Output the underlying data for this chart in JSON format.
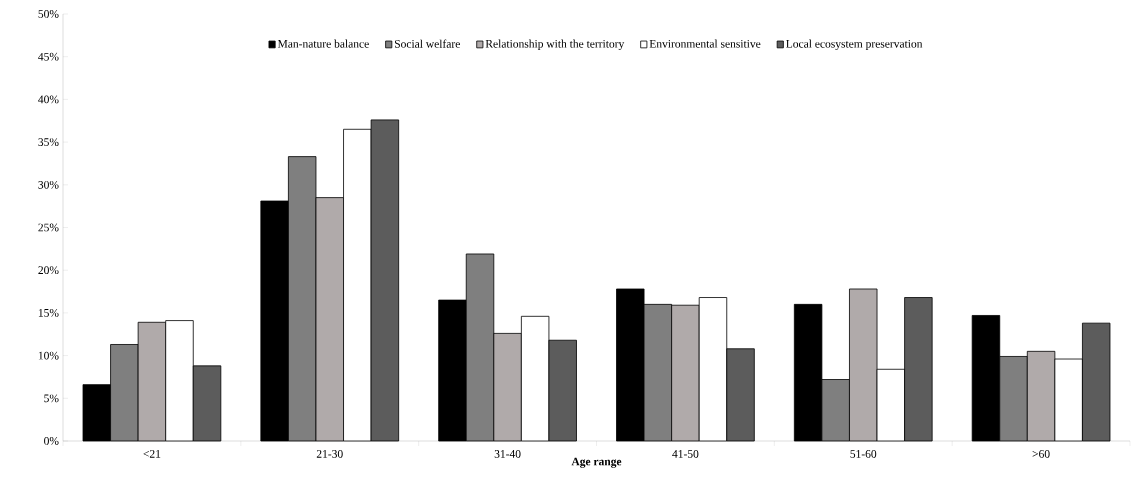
{
  "chart_data": {
    "type": "bar",
    "xlabel": "Age range",
    "categories": [
      "<21",
      "21-30",
      "31-40",
      "41-50",
      "51-60",
      ">60"
    ],
    "series": [
      {
        "name": "Man-nature balance",
        "color": "#000000",
        "values": [
          6.6,
          28.1,
          16.5,
          17.8,
          16.0,
          14.7
        ]
      },
      {
        "name": "Social welfare",
        "color": "#7f7f7f",
        "values": [
          11.3,
          33.3,
          21.9,
          16.0,
          7.2,
          9.9
        ]
      },
      {
        "name": "Relationship with the territory",
        "color": "#b0aaaa",
        "values": [
          13.9,
          28.5,
          12.6,
          15.9,
          17.8,
          10.5
        ]
      },
      {
        "name": "Environmental sensitive",
        "color": "#ffffff",
        "values": [
          14.1,
          36.5,
          14.6,
          16.8,
          8.4,
          9.6
        ]
      },
      {
        "name": "Local ecosystem preservation",
        "color": "#5c5c5c",
        "values": [
          8.8,
          37.6,
          11.8,
          10.8,
          16.8,
          13.8
        ]
      }
    ],
    "ylim": [
      0,
      50
    ],
    "yticks": [
      {
        "value": 0,
        "label": "0%"
      },
      {
        "value": 5,
        "label": "5%"
      },
      {
        "value": 10,
        "label": "10%"
      },
      {
        "value": 15,
        "label": "15%"
      },
      {
        "value": 20,
        "label": "20%"
      },
      {
        "value": 25,
        "label": "25%"
      },
      {
        "value": 30,
        "label": "30%"
      },
      {
        "value": 35,
        "label": "35%"
      },
      {
        "value": 40,
        "label": "40%"
      },
      {
        "value": 45,
        "label": "45%"
      },
      {
        "value": 50,
        "label": "50%"
      }
    ],
    "legend": "top",
    "grid": false
  }
}
